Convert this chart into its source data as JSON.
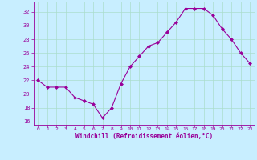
{
  "x": [
    0,
    1,
    2,
    3,
    4,
    5,
    6,
    7,
    8,
    9,
    10,
    11,
    12,
    13,
    14,
    15,
    16,
    17,
    18,
    19,
    20,
    21,
    22,
    23
  ],
  "y": [
    22.0,
    21.0,
    21.0,
    21.0,
    19.5,
    19.0,
    18.5,
    16.5,
    18.0,
    21.5,
    24.0,
    25.5,
    27.0,
    27.5,
    29.0,
    30.5,
    32.5,
    32.5,
    32.5,
    31.5,
    29.5,
    28.0,
    26.0,
    24.5
  ],
  "line_color": "#990099",
  "marker": "D",
  "marker_size": 2,
  "bg_color": "#c8eeff",
  "grid_color": "#aaddcc",
  "xlabel": "Windchill (Refroidissement éolien,°C)",
  "xlabel_color": "#990099",
  "tick_color": "#990099",
  "ylim": [
    15.5,
    33.5
  ],
  "yticks": [
    16,
    18,
    20,
    22,
    24,
    26,
    28,
    30,
    32
  ],
  "xticks": [
    0,
    1,
    2,
    3,
    4,
    5,
    6,
    7,
    8,
    9,
    10,
    11,
    12,
    13,
    14,
    15,
    16,
    17,
    18,
    19,
    20,
    21,
    22,
    23
  ],
  "spine_color": "#990099"
}
